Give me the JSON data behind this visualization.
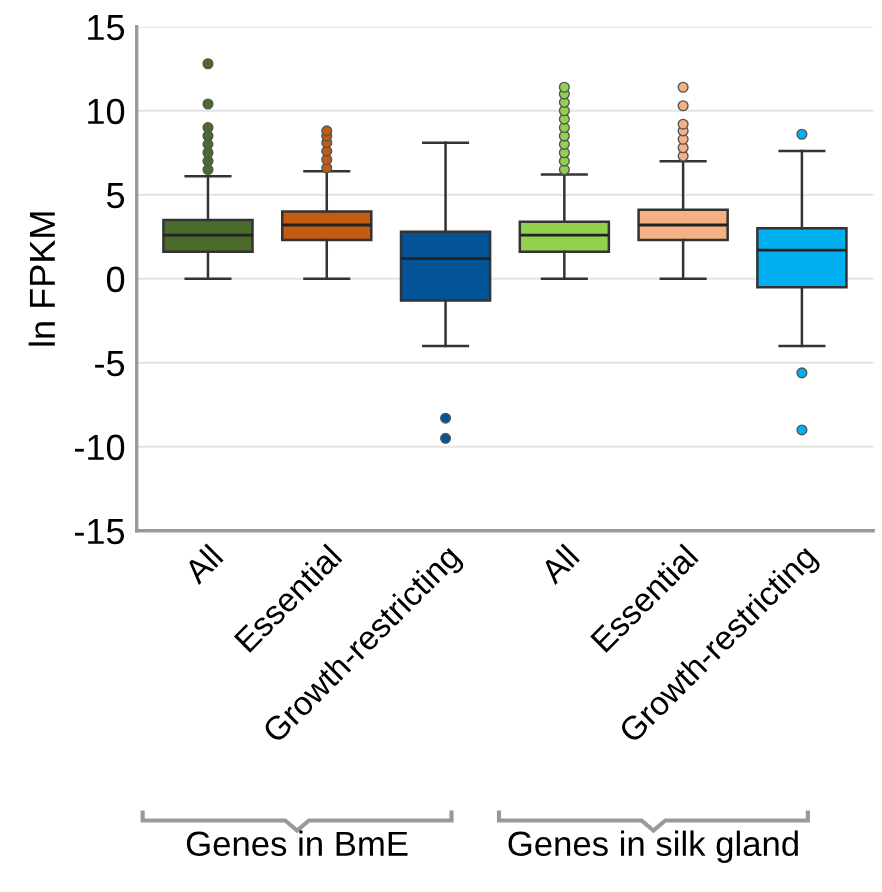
{
  "chart_data": {
    "type": "box",
    "ylabel": "ln FPKM",
    "categories": [
      "All",
      "Essential",
      "Growth-restricting",
      "All",
      "Essential",
      "Growth-restricting"
    ],
    "colors": [
      "#4a6b2a",
      "#c55a11",
      "#035496",
      "#92d050",
      "#f4b183",
      "#00b0f0"
    ],
    "boxes": [
      {
        "low": 0,
        "q1": 1.6,
        "median": 2.6,
        "q3": 3.5,
        "high": 6.1,
        "outliers": [
          6.5,
          7.0,
          7.5,
          8.0,
          8.5,
          9.0,
          10.4,
          12.8
        ]
      },
      {
        "low": 0,
        "q1": 2.3,
        "median": 3.2,
        "q3": 4.0,
        "high": 6.4,
        "outliers": [
          6.6,
          7.1,
          7.6,
          8.1,
          8.5,
          8.8
        ]
      },
      {
        "low": -4.0,
        "q1": -1.3,
        "median": 1.2,
        "q3": 2.8,
        "high": 8.1,
        "outliers": [
          -8.3,
          -9.5
        ]
      },
      {
        "low": 0,
        "q1": 1.6,
        "median": 2.6,
        "q3": 3.4,
        "high": 6.2,
        "outliers": [
          6.5,
          7.0,
          7.5,
          8.0,
          8.5,
          9.0,
          9.5,
          10.0,
          10.5,
          11.0,
          11.4
        ]
      },
      {
        "low": 0,
        "q1": 2.3,
        "median": 3.2,
        "q3": 4.1,
        "high": 7.0,
        "outliers": [
          7.3,
          7.8,
          8.3,
          8.8,
          9.2,
          10.3,
          11.4
        ]
      },
      {
        "low": -4.0,
        "q1": -0.5,
        "median": 1.7,
        "q3": 3.0,
        "high": 7.6,
        "outliers": [
          8.6,
          -5.6,
          -9.0
        ]
      }
    ],
    "ylim": [
      -15,
      15
    ],
    "yticks": [
      -15,
      -10,
      -5,
      0,
      5,
      10,
      15
    ],
    "grid": "y",
    "annotations": [
      "Genes in BmE",
      "Genes in silk gland"
    ]
  }
}
